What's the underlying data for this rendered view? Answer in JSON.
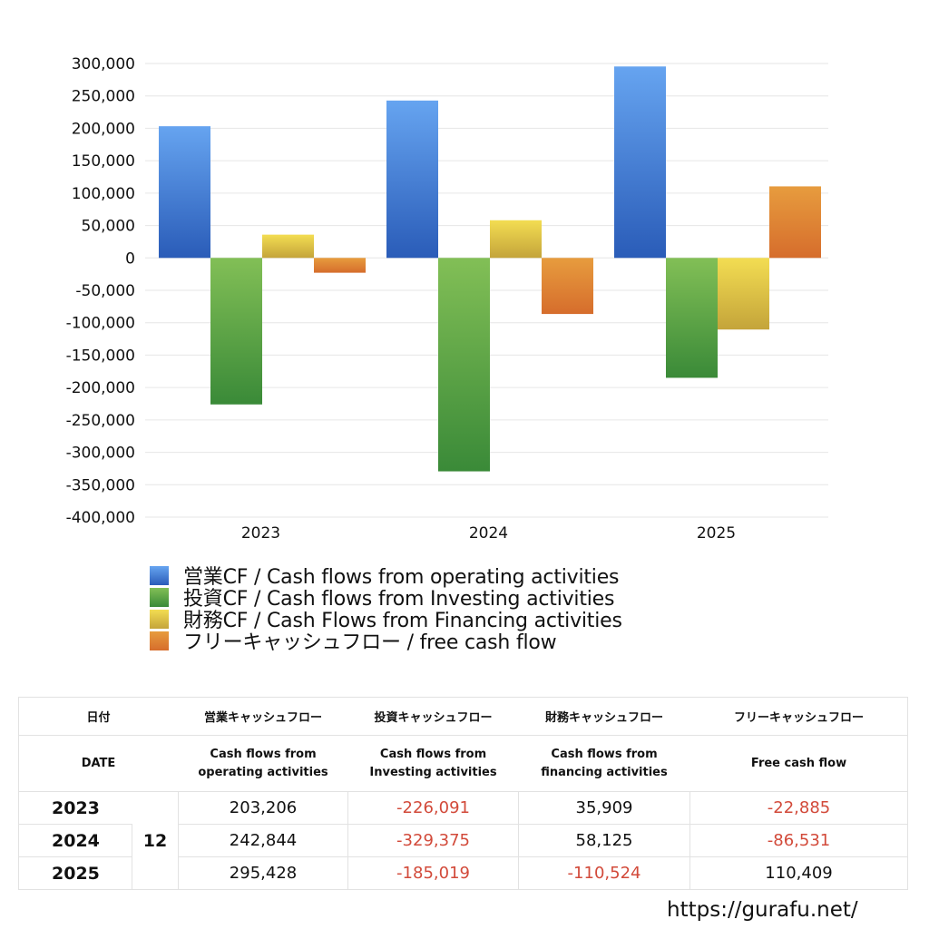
{
  "chart_data": {
    "type": "bar",
    "title": "",
    "xlabel": "",
    "ylabel": "",
    "categories": [
      "2023",
      "2024",
      "2025"
    ],
    "series": [
      {
        "name": "営業CF / Cash flows from operating activities",
        "values": [
          203206,
          242844,
          295428
        ],
        "color_top": "#66a4f0",
        "color_bottom": "#2a5cb8"
      },
      {
        "name": "投資CF / Cash flows from Investing activities",
        "values": [
          -226091,
          -329375,
          -185019
        ],
        "color_top": "#82bf56",
        "color_bottom": "#3a8a38"
      },
      {
        "name": "財務CF / Cash Flows from Financing activities",
        "values": [
          35909,
          58125,
          -110524
        ],
        "color_top": "#f3dd52",
        "color_bottom": "#c4a43a"
      },
      {
        "name": "フリーキャッシュフロー / free cash flow",
        "values": [
          -22885,
          -86531,
          110409
        ],
        "color_top": "#e79c3e",
        "color_bottom": "#d66d2c"
      }
    ],
    "ylim": [
      -400000,
      300000
    ],
    "yticks": [
      "300,000",
      "250,000",
      "200,000",
      "150,000",
      "100,000",
      "50,000",
      "0",
      "-50,000",
      "-100,000",
      "-150,000",
      "-200,000",
      "-250,000",
      "-300,000",
      "-350,000",
      "-400,000"
    ],
    "grid": true,
    "legend_position": "bottom"
  },
  "legend": [
    {
      "label": "営業CF / Cash flows from operating activities",
      "color": "#4a86de"
    },
    {
      "label": "投資CF / Cash flows from Investing activities",
      "color": "#5aa447"
    },
    {
      "label": "財務CF / Cash Flows from Financing activities",
      "color": "#e2c748"
    },
    {
      "label": "フリーキャッシュフロー / free cash flow",
      "color": "#df8434"
    }
  ],
  "table": {
    "header_jp": {
      "date": "日付",
      "operating": "営業キャッシュフロー",
      "investing": "投資キャッシュフロー",
      "financing": "財務キャッシュフロー",
      "free": "フリーキャッシュフロー"
    },
    "header_en": {
      "date": "DATE",
      "operating_1": "Cash flows from",
      "operating_2": "operating activities",
      "investing_1": "Cash flows from",
      "investing_2": "Investing activities",
      "financing_1": "Cash flows from",
      "financing_2": "financing activities",
      "free": "Free cash flow"
    },
    "rows": [
      {
        "year": "2023",
        "month": "12",
        "operating": "203,206",
        "investing": "-226,091",
        "financing": "35,909",
        "free": "-22,885"
      },
      {
        "year": "2024",
        "month": "12",
        "operating": "242,844",
        "investing": "-329,375",
        "financing": "58,125",
        "free": "-86,531"
      },
      {
        "year": "2025",
        "month": "12",
        "operating": "295,428",
        "investing": "-185,019",
        "financing": "-110,524",
        "free": "110,409"
      }
    ]
  },
  "footer": {
    "url": "https://gurafu.net/"
  },
  "colors": {
    "negative": "#d24a3a",
    "grid": "#e6e6e6"
  }
}
